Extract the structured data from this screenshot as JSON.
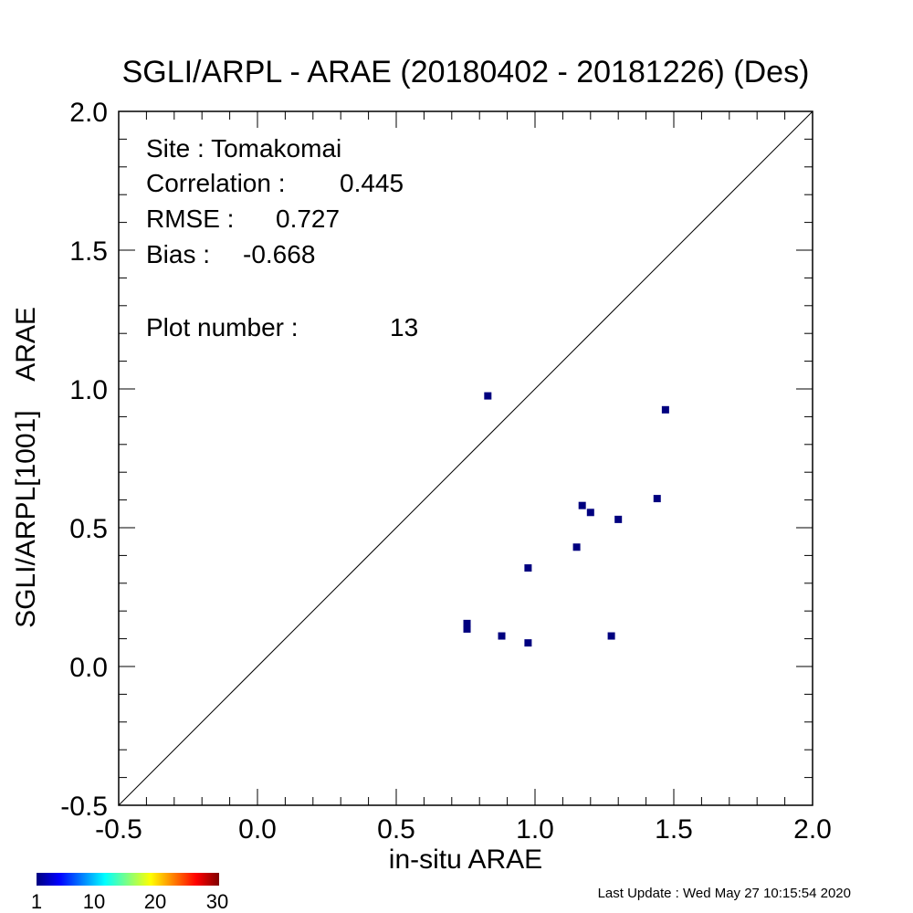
{
  "chart_data": {
    "type": "scatter",
    "title": "SGLI/ARPL - ARAE (20180402 - 20181226) (Des)",
    "xlabel": "in-situ ARAE",
    "ylabel": "SGLI/ARPL[1001]    ARAE",
    "xlim": [
      -0.5,
      2.0
    ],
    "ylim": [
      -0.5,
      2.0
    ],
    "x_ticks": [
      "-0.5",
      "0.0",
      "0.5",
      "1.0",
      "1.5",
      "2.0"
    ],
    "y_ticks": [
      "-0.5",
      "0.0",
      "0.5",
      "1.0",
      "1.5",
      "2.0"
    ],
    "reference_line": "1:1",
    "grid": false,
    "marker_color": "#00007f",
    "points": [
      {
        "x": 0.83,
        "y": 0.975
      },
      {
        "x": 1.47,
        "y": 0.925
      },
      {
        "x": 1.44,
        "y": 0.605
      },
      {
        "x": 1.17,
        "y": 0.58
      },
      {
        "x": 1.2,
        "y": 0.555
      },
      {
        "x": 1.3,
        "y": 0.53
      },
      {
        "x": 1.15,
        "y": 0.43
      },
      {
        "x": 0.975,
        "y": 0.355
      },
      {
        "x": 0.755,
        "y": 0.155
      },
      {
        "x": 0.755,
        "y": 0.135
      },
      {
        "x": 0.88,
        "y": 0.11
      },
      {
        "x": 1.275,
        "y": 0.11
      },
      {
        "x": 0.975,
        "y": 0.085
      }
    ]
  },
  "stats": {
    "site": "Site : Tomakomai",
    "correlation_label": "Correlation :",
    "correlation_value": "0.445",
    "rmse_label": "RMSE :",
    "rmse_value": "0.727",
    "bias_label": "Bias :",
    "bias_value": "-0.668",
    "plot_number_label": "Plot number :",
    "plot_number_value": "13"
  },
  "colorbar": {
    "ticks": [
      "1",
      "10",
      "20",
      "30"
    ],
    "colors": [
      "#00007f",
      "#0000ff",
      "#0080ff",
      "#00ffff",
      "#80ff80",
      "#ffff00",
      "#ff8000",
      "#ff0000",
      "#7f0000"
    ]
  },
  "footer": {
    "last_update": "Last Update : Wed May 27 10:15:54 2020"
  }
}
